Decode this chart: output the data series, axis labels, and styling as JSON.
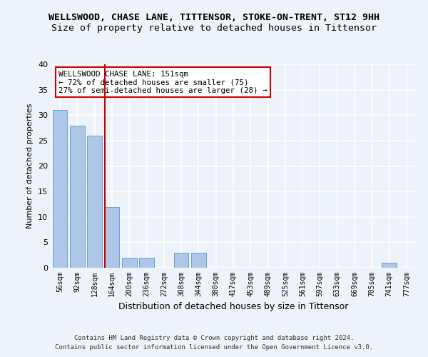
{
  "title": "WELLSWOOD, CHASE LANE, TITTENSOR, STOKE-ON-TRENT, ST12 9HH",
  "subtitle": "Size of property relative to detached houses in Tittensor",
  "xlabel": "Distribution of detached houses by size in Tittensor",
  "ylabel": "Number of detached properties",
  "categories": [
    "56sqm",
    "92sqm",
    "128sqm",
    "164sqm",
    "200sqm",
    "236sqm",
    "272sqm",
    "308sqm",
    "344sqm",
    "380sqm",
    "417sqm",
    "453sqm",
    "489sqm",
    "525sqm",
    "561sqm",
    "597sqm",
    "633sqm",
    "669sqm",
    "705sqm",
    "741sqm",
    "777sqm"
  ],
  "values": [
    31,
    28,
    26,
    12,
    2,
    2,
    0,
    3,
    3,
    0,
    0,
    0,
    0,
    0,
    0,
    0,
    0,
    0,
    0,
    1,
    0
  ],
  "bar_color": "#aec6e8",
  "bar_edge_color": "#5a9bd5",
  "vline_color": "#cc0000",
  "vline_pos": 2.58,
  "annotation_text": "WELLSWOOD CHASE LANE: 151sqm\n← 72% of detached houses are smaller (75)\n27% of semi-detached houses are larger (28) →",
  "annotation_box_color": "#ffffff",
  "annotation_edge_color": "#cc0000",
  "ylim": [
    0,
    40
  ],
  "yticks": [
    0,
    5,
    10,
    15,
    20,
    25,
    30,
    35,
    40
  ],
  "footer_line1": "Contains HM Land Registry data © Crown copyright and database right 2024.",
  "footer_line2": "Contains public sector information licensed under the Open Government Licence v3.0.",
  "background_color": "#eef2f9",
  "plot_background_color": "#eef2f9",
  "grid_color": "#ffffff",
  "title_fontsize": 9.5,
  "subtitle_fontsize": 9.5,
  "ylabel_fontsize": 8,
  "xlabel_fontsize": 9,
  "tick_fontsize": 7,
  "footer_fontsize": 6.5,
  "annotation_fontsize": 7.8
}
